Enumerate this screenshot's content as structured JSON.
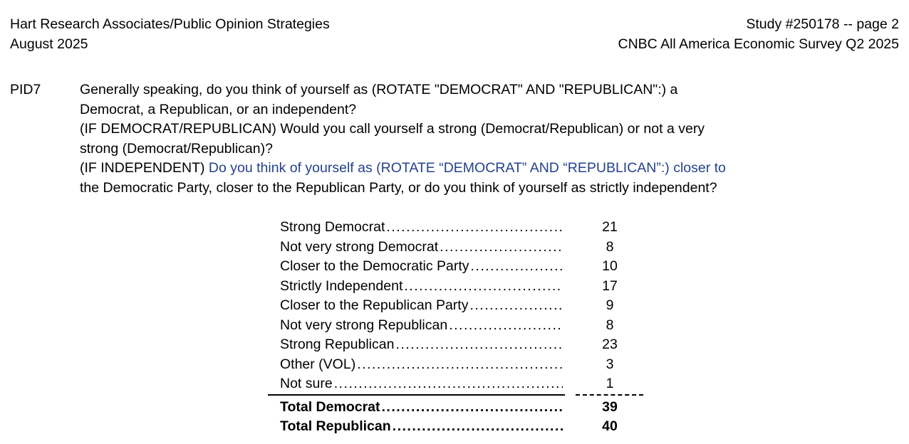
{
  "header": {
    "left_line1": "Hart Research Associates/Public Opinion Strategies",
    "left_line2": "August 2025",
    "right_line1": "Study #250178 -- page 2",
    "right_line2": "CNBC All America Economic Survey Q2 2025"
  },
  "question": {
    "id": "PID7",
    "line1": "Generally speaking, do you think of yourself as (ROTATE \"DEMOCRAT\" AND \"REPUBLICAN\":) a",
    "line2": "Democrat, a Republican, or an independent?",
    "line3": "(IF DEMOCRAT/REPUBLICAN) Would you call yourself a strong (Democrat/Republican) or not a very",
    "line4": "strong (Democrat/Republican)?",
    "line5_black": "(IF INDEPENDENT) ",
    "line5_blue": "Do you think of yourself as (ROTATE “DEMOCRAT” AND “REPUBLICAN”:) closer to",
    "line6": "the Democratic Party, closer to the Republican Party, or do you think of yourself as strictly independent?"
  },
  "results": {
    "rows": [
      {
        "label": "Strong Democrat",
        "value": "21"
      },
      {
        "label": "Not very strong Democrat",
        "value": "8"
      },
      {
        "label": "Closer to the Democratic Party",
        "value": "10"
      },
      {
        "label": "Strictly Independent",
        "value": "17"
      },
      {
        "label": "Closer to the Republican Party",
        "value": "9"
      },
      {
        "label": "Not very strong Republican",
        "value": "8"
      },
      {
        "label": "Strong Republican",
        "value": "23"
      },
      {
        "label": "Other (VOL)",
        "value": "3"
      },
      {
        "label": "Not sure",
        "value": "1"
      }
    ],
    "totals": [
      {
        "label": "Total Democrat",
        "value": "39"
      },
      {
        "label": "Total Republican",
        "value": "40"
      }
    ]
  },
  "colors": {
    "text": "#000000",
    "highlight_text": "#24428c"
  }
}
